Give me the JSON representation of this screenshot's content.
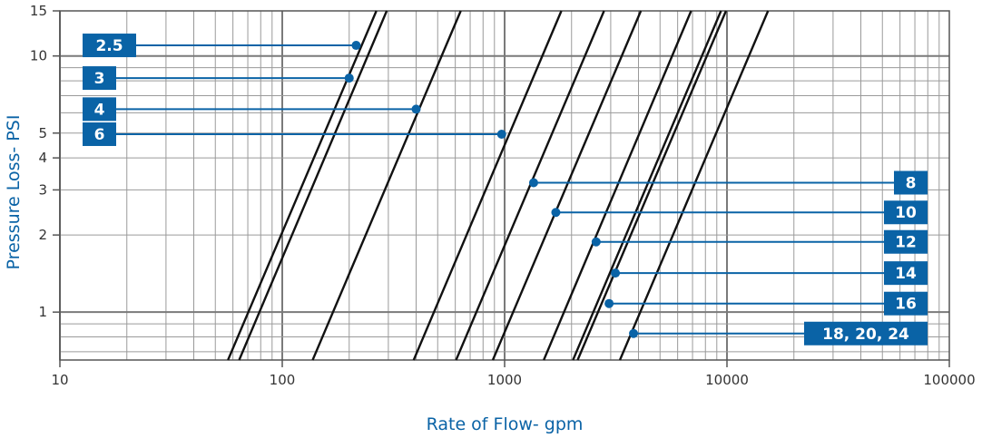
{
  "chart_data": {
    "type": "line",
    "xscale": "log",
    "yscale": "log",
    "xlim": [
      10,
      100000
    ],
    "ylim": [
      0.65,
      15
    ],
    "xlabel": "Rate of Flow- gpm",
    "ylabel": "Pressure Loss- PSI",
    "x_ticks": [
      "10",
      "100",
      "1000",
      "10000",
      "100000"
    ],
    "y_ticks": [
      {
        "value": 15,
        "label": "15"
      },
      {
        "value": 10,
        "label": "10"
      },
      {
        "value": 5,
        "label": "5"
      },
      {
        "value": 4,
        "label": "4"
      },
      {
        "value": 3,
        "label": "3"
      },
      {
        "value": 2,
        "label": "2"
      },
      {
        "value": 1,
        "label": "1"
      }
    ],
    "grid": true,
    "series": [
      {
        "name": "2.5",
        "points": [
          [
            57,
            0.65
          ],
          [
            265,
            15
          ]
        ],
        "marker": [
          215,
          11.0
        ],
        "label_side": "left"
      },
      {
        "name": "3",
        "points": [
          [
            64,
            0.65
          ],
          [
            295,
            15
          ]
        ],
        "marker": [
          200,
          8.2
        ],
        "label_side": "left"
      },
      {
        "name": "4",
        "points": [
          [
            137,
            0.65
          ],
          [
            635,
            15
          ]
        ],
        "marker": [
          400,
          6.2
        ],
        "label_side": "left"
      },
      {
        "name": "6",
        "points": [
          [
            390,
            0.65
          ],
          [
            1800,
            15
          ]
        ],
        "marker": [
          970,
          4.95
        ],
        "label_side": "left"
      },
      {
        "name": "8",
        "points": [
          [
            605,
            0.65
          ],
          [
            2800,
            15
          ]
        ],
        "marker": [
          1350,
          3.2
        ],
        "label_side": "right"
      },
      {
        "name": "10",
        "points": [
          [
            885,
            0.65
          ],
          [
            4100,
            15
          ]
        ],
        "marker": [
          1700,
          2.45
        ],
        "label_side": "right"
      },
      {
        "name": "12",
        "points": [
          [
            1500,
            0.65
          ],
          [
            6900,
            15
          ]
        ],
        "marker": [
          2580,
          1.88
        ],
        "label_side": "right"
      },
      {
        "name": "14",
        "points": [
          [
            2030,
            0.65
          ],
          [
            9400,
            15
          ]
        ],
        "marker": [
          3150,
          1.42
        ],
        "label_side": "right"
      },
      {
        "name": "16",
        "points": [
          [
            2130,
            0.65
          ],
          [
            9900,
            15
          ]
        ],
        "marker": [
          2950,
          1.08
        ],
        "label_side": "right"
      },
      {
        "name": "18, 20, 24",
        "points": [
          [
            3300,
            0.65
          ],
          [
            15300,
            15
          ]
        ],
        "marker": [
          3800,
          0.825
        ],
        "label_side": "right"
      }
    ]
  },
  "colors": {
    "line": "#111111",
    "grid": "#8a8a8a",
    "axis": "#555555",
    "accent": "#0a63a6"
  }
}
